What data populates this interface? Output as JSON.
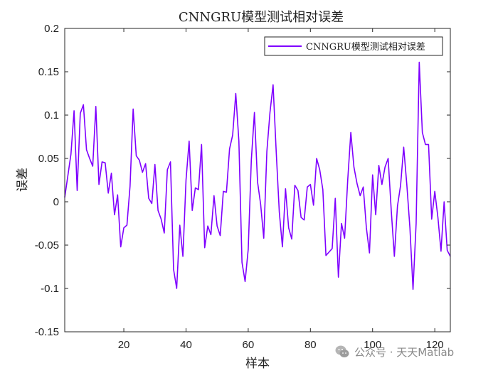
{
  "chart_data": {
    "type": "line",
    "title": "CNNGRU模型测试相对误差",
    "xlabel": "样本",
    "ylabel": "误差",
    "xlim": [
      1,
      125
    ],
    "ylim": [
      -0.15,
      0.2
    ],
    "xticks": [
      20,
      40,
      60,
      80,
      100,
      120
    ],
    "yticks": [
      -0.15,
      -0.1,
      -0.05,
      0,
      0.05,
      0.1,
      0.15,
      0.2
    ],
    "ytick_labels": [
      "-0.15",
      "-0.1",
      "-0.05",
      "0",
      "0.05",
      "0.1",
      "0.15",
      "0.2"
    ],
    "grid": false,
    "legend_position": "top-right",
    "series": [
      {
        "name": "CNNGRU模型测试相对误差",
        "color": "#7F00FF",
        "x": [
          1,
          2,
          3,
          4,
          5,
          6,
          7,
          8,
          9,
          10,
          11,
          12,
          13,
          14,
          15,
          16,
          17,
          18,
          19,
          20,
          21,
          22,
          23,
          24,
          25,
          26,
          27,
          28,
          29,
          30,
          31,
          32,
          33,
          34,
          35,
          36,
          37,
          38,
          39,
          40,
          41,
          42,
          43,
          44,
          45,
          46,
          47,
          48,
          49,
          50,
          51,
          52,
          53,
          54,
          55,
          56,
          57,
          58,
          59,
          60,
          61,
          62,
          63,
          64,
          65,
          66,
          67,
          68,
          69,
          70,
          71,
          72,
          73,
          74,
          75,
          76,
          77,
          78,
          79,
          80,
          81,
          82,
          83,
          84,
          85,
          86,
          87,
          88,
          89,
          90,
          91,
          92,
          93,
          94,
          95,
          96,
          97,
          98,
          99,
          100,
          101,
          102,
          103,
          104,
          105,
          106,
          107,
          108,
          109,
          110,
          111,
          112,
          113,
          114,
          115,
          116,
          117,
          118,
          119,
          120,
          121,
          122,
          123,
          124,
          125
        ],
        "values": [
          0.005,
          0.03,
          0.055,
          0.105,
          0.013,
          0.102,
          0.112,
          0.06,
          0.05,
          0.041,
          0.11,
          0.02,
          0.046,
          0.045,
          0.01,
          0.033,
          -0.015,
          0.008,
          -0.052,
          -0.03,
          -0.027,
          0.018,
          0.107,
          0.053,
          0.048,
          0.034,
          0.044,
          0.004,
          -0.002,
          0.043,
          -0.01,
          -0.02,
          -0.036,
          0.037,
          0.046,
          -0.078,
          -0.1,
          -0.027,
          -0.063,
          0.025,
          0.07,
          -0.01,
          0.016,
          0.014,
          0.066,
          -0.053,
          -0.028,
          -0.038,
          0.007,
          -0.028,
          -0.039,
          0.012,
          0.011,
          0.061,
          0.077,
          0.125,
          0.07,
          -0.07,
          -0.092,
          -0.055,
          0.048,
          0.103,
          0.023,
          -0.003,
          -0.042,
          0.058,
          0.103,
          0.135,
          0.058,
          -0.012,
          -0.052,
          0.015,
          -0.03,
          -0.043,
          0.019,
          0.013,
          -0.018,
          -0.021,
          0.017,
          0.02,
          -0.004,
          0.05,
          0.037,
          0.014,
          -0.062,
          -0.058,
          -0.054,
          0.004,
          -0.087,
          -0.025,
          -0.042,
          0.025,
          0.08,
          0.04,
          0.021,
          0.007,
          0.017,
          -0.03,
          -0.059,
          0.031,
          -0.015,
          0.042,
          0.02,
          0.04,
          0.05,
          -0.01,
          -0.063,
          -0.005,
          0.019,
          0.063,
          0.02,
          -0.03,
          -0.101,
          -0.025,
          0.161,
          0.08,
          0.066,
          0.066,
          -0.02,
          0.012,
          -0.018,
          -0.057,
          0.0,
          -0.056,
          -0.063
        ]
      }
    ]
  },
  "watermark": {
    "text": "公众号 · 天天Matlab",
    "icon": "wechat-icon"
  }
}
